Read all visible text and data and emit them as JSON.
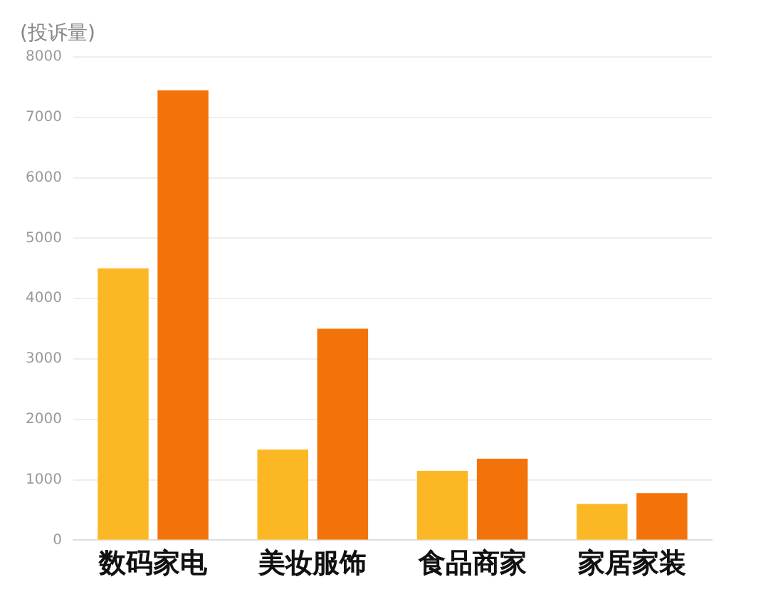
{
  "chart_data": {
    "type": "bar",
    "ylabel": "(投诉量)",
    "categories": [
      "数码家电",
      "美妆服饰",
      "食品商家",
      "家居家装"
    ],
    "series": [
      {
        "color": "#fbb824",
        "values": [
          4500,
          1500,
          1150,
          600
        ]
      },
      {
        "color": "#f3730a",
        "values": [
          7450,
          3500,
          1350,
          780
        ]
      }
    ],
    "ylim": [
      0,
      8000
    ],
    "yticks": [
      0,
      1000,
      2000,
      3000,
      4000,
      5000,
      6000,
      7000,
      8000
    ],
    "grid": "y"
  }
}
